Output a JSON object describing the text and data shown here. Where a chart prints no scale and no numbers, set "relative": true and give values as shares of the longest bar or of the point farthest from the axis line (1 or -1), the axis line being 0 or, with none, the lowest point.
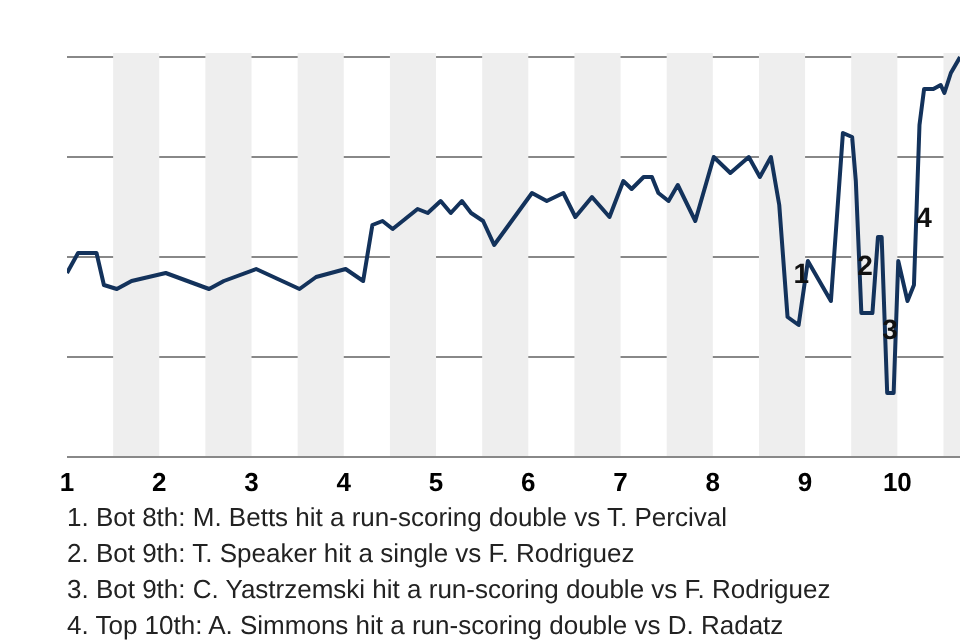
{
  "chart_data": {
    "type": "line",
    "relative": true,
    "x": [
      1.0,
      1.12,
      1.32,
      1.4,
      1.54,
      1.7,
      2.07,
      2.54,
      2.7,
      3.05,
      3.52,
      3.7,
      4.02,
      4.21,
      4.31,
      4.42,
      4.53,
      4.8,
      4.91,
      5.05,
      5.16,
      5.28,
      5.38,
      5.51,
      5.63,
      6.04,
      6.2,
      6.38,
      6.51,
      6.69,
      6.88,
      7.03,
      7.12,
      7.25,
      7.34,
      7.41,
      7.52,
      7.62,
      7.81,
      8.01,
      8.19,
      8.39,
      8.51,
      8.63,
      8.72,
      8.81,
      8.93,
      9.03,
      9.28,
      9.41,
      9.51,
      9.55,
      9.61,
      9.73,
      9.79,
      9.83,
      9.89,
      9.96,
      10.01,
      10.11,
      10.18,
      10.24,
      10.29,
      10.39,
      10.47,
      10.51,
      10.58,
      10.68
    ],
    "series": [
      {
        "color": "#13325b",
        "values": [
          0.46,
          0.51,
          0.51,
          0.43,
          0.42,
          0.44,
          0.46,
          0.42,
          0.44,
          0.47,
          0.42,
          0.45,
          0.47,
          0.44,
          0.58,
          0.59,
          0.57,
          0.62,
          0.61,
          0.64,
          0.61,
          0.64,
          0.61,
          0.59,
          0.53,
          0.66,
          0.64,
          0.66,
          0.6,
          0.65,
          0.6,
          0.69,
          0.67,
          0.7,
          0.7,
          0.66,
          0.64,
          0.68,
          0.59,
          0.75,
          0.71,
          0.75,
          0.7,
          0.75,
          0.63,
          0.35,
          0.33,
          0.49,
          0.39,
          0.81,
          0.8,
          0.69,
          0.36,
          0.36,
          0.55,
          0.55,
          0.16,
          0.16,
          0.49,
          0.39,
          0.43,
          0.83,
          0.92,
          0.92,
          0.93,
          0.91,
          0.96,
          1.0
        ]
      }
    ],
    "xlim": [
      1,
      10.69
    ],
    "xticks": [
      1,
      2,
      3,
      4,
      5,
      6,
      7,
      8,
      9,
      10
    ],
    "tick_labels": "x",
    "grid": "y",
    "marker": "none",
    "line_style": "solid",
    "bands": [
      {
        "axis": "x",
        "from": 1.5,
        "to": 2,
        "color": "#eeeeee"
      },
      {
        "axis": "x",
        "from": 2.5,
        "to": 3,
        "color": "#eeeeee"
      },
      {
        "axis": "x",
        "from": 3.5,
        "to": 4,
        "color": "#eeeeee"
      },
      {
        "axis": "x",
        "from": 4.5,
        "to": 5,
        "color": "#eeeeee"
      },
      {
        "axis": "x",
        "from": 5.5,
        "to": 6,
        "color": "#eeeeee"
      },
      {
        "axis": "x",
        "from": 6.5,
        "to": 7,
        "color": "#eeeeee"
      },
      {
        "axis": "x",
        "from": 7.5,
        "to": 8,
        "color": "#eeeeee"
      },
      {
        "axis": "x",
        "from": 8.5,
        "to": 9,
        "color": "#eeeeee"
      },
      {
        "axis": "x",
        "from": 9.5,
        "to": 10,
        "color": "#eeeeee"
      },
      {
        "axis": "x",
        "from": 10.5,
        "to": 10.69,
        "color": "#eeeeee"
      }
    ],
    "annotations": [
      {
        "text": "1",
        "x": 8.96,
        "y": 0.46
      },
      {
        "text": "2",
        "x": 9.65,
        "y": 0.48
      },
      {
        "text": "3",
        "x": 9.92,
        "y": 0.32
      },
      {
        "text": "4",
        "x": 10.29,
        "y": 0.6
      },
      "1. Bot 8th: M. Betts hit a run-scoring double vs T. Percival",
      "2. Bot 9th: T. Speaker hit a single vs F. Rodriguez",
      "3. Bot 9th: C. Yastrzemski hit a run-scoring double vs F. Rodriguez",
      "4. Top 10th: A. Simmons hit a run-scoring double vs D. Radatz"
    ]
  }
}
